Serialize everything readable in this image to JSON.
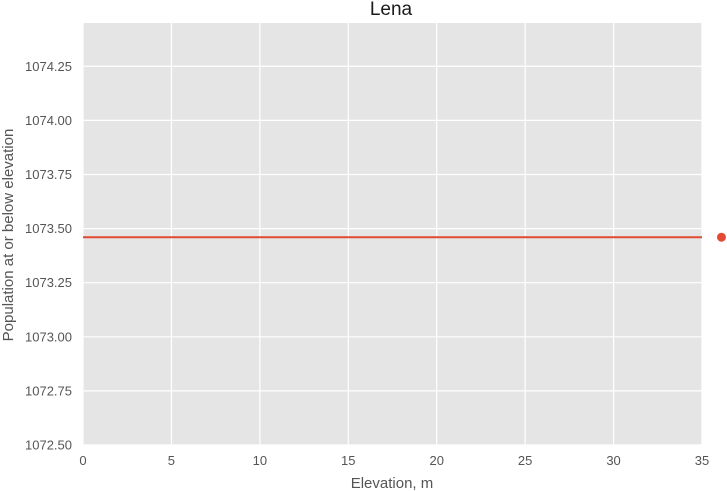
{
  "chart_data": {
    "type": "line",
    "title": "Lena",
    "xlabel": "Elevation, m",
    "ylabel": "Population at or below elevation",
    "xlim": [
      0,
      35
    ],
    "ylim": [
      1072.5,
      1074.45
    ],
    "x_ticks": [
      "0",
      "5",
      "10",
      "15",
      "20",
      "25",
      "30",
      "35"
    ],
    "y_ticks": [
      "1072.50",
      "1072.75",
      "1073.00",
      "1073.25",
      "1073.50",
      "1073.75",
      "1074.00",
      "1074.25"
    ],
    "grid": true,
    "legend": false,
    "series": [
      {
        "x": [
          0,
          35
        ],
        "y": [
          1073.46,
          1073.46
        ],
        "color": "#e24a33"
      }
    ],
    "markers": [
      {
        "x": 36.1,
        "y": 1073.46,
        "color": "#e24a33"
      }
    ],
    "colors": {
      "background": "#e5e5e5",
      "grid": "#ffffff",
      "line": "#e24a33"
    }
  }
}
